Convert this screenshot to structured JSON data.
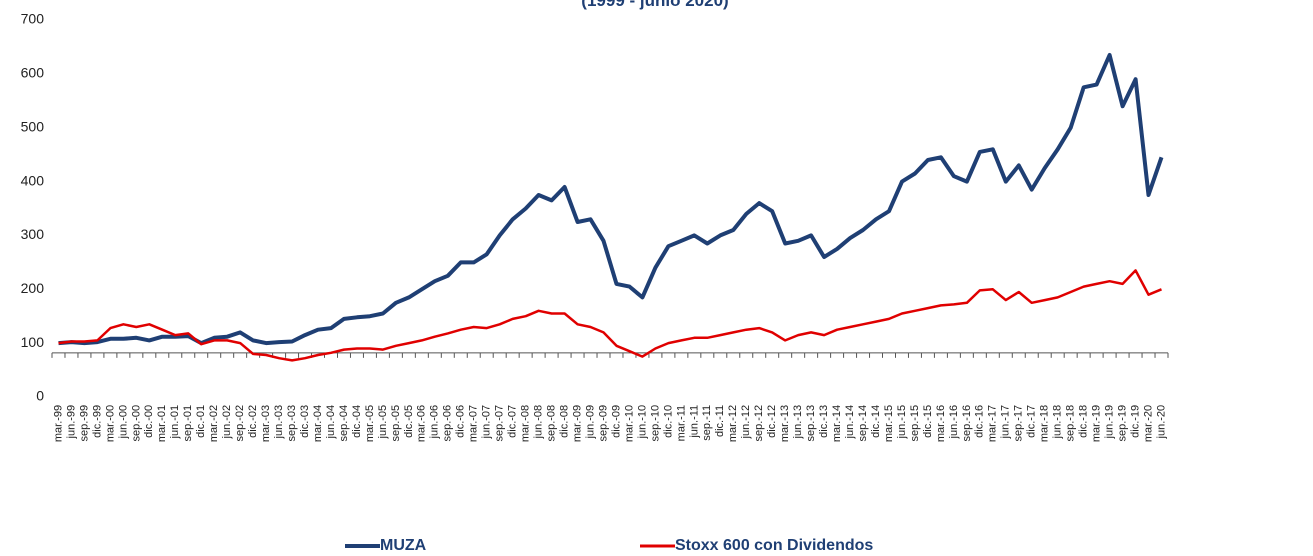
{
  "chart_data": {
    "type": "line",
    "title": "(1999 - junio 2020)",
    "categories": [
      "mar.-99",
      "jun.-99",
      "sep.-99",
      "dic.-99",
      "mar.-00",
      "jun.-00",
      "sep.-00",
      "dic.-00",
      "mar.-01",
      "jun.-01",
      "sep.-01",
      "dic.-01",
      "mar.-02",
      "jun.-02",
      "sep.-02",
      "dic.-02",
      "mar.-03",
      "jun.-03",
      "sep.-03",
      "dic.-03",
      "mar.-04",
      "jun.-04",
      "sep.-04",
      "dic.-04",
      "mar.-05",
      "jun.-05",
      "sep.-05",
      "dic.-05",
      "mar.-06",
      "jun.-06",
      "sep.-06",
      "dic.-06",
      "mar.-07",
      "jun.-07",
      "sep.-07",
      "dic.-07",
      "mar.-08",
      "jun.-08",
      "sep.-08",
      "dic.-08",
      "mar.-09",
      "jun.-09",
      "sep.-09",
      "dic.-09",
      "mar.-10",
      "jun.-10",
      "sep.-10",
      "dic.-10",
      "mar.-11",
      "jun.-11",
      "sep.-11",
      "dic.-11",
      "mar.-12",
      "jun.-12",
      "sep.-12",
      "dic.-12",
      "mar.-13",
      "jun.-13",
      "sep.-13",
      "dic.-13",
      "mar.-14",
      "jun.-14",
      "sep.-14",
      "dic.-14",
      "mar.-15",
      "jun.-15",
      "sep.-15",
      "dic.-15",
      "mar.-16",
      "jun.-16",
      "sep.-16",
      "dic.-16",
      "mar.-17",
      "jun.-17",
      "sep.-17",
      "dic.-17",
      "mar.-18",
      "jun.-18",
      "sep.-18",
      "dic.-18",
      "mar.-19",
      "jun.-19",
      "sep.-19",
      "dic.-19",
      "mar.-20",
      "jun.-20"
    ],
    "series": [
      {
        "name": "MUZA",
        "color": "#1f3f74",
        "values": [
          100,
          102,
          100,
          102,
          108,
          108,
          110,
          105,
          112,
          112,
          113,
          100,
          110,
          112,
          120,
          105,
          100,
          102,
          103,
          115,
          125,
          128,
          145,
          148,
          150,
          155,
          175,
          185,
          200,
          215,
          225,
          250,
          250,
          265,
          300,
          330,
          350,
          375,
          365,
          390,
          325,
          330,
          290,
          210,
          205,
          185,
          240,
          280,
          290,
          300,
          285,
          300,
          310,
          340,
          360,
          345,
          285,
          290,
          300,
          260,
          275,
          295,
          310,
          330,
          345,
          400,
          415,
          440,
          445,
          410,
          400,
          455,
          460,
          400,
          430,
          385,
          425,
          460,
          500,
          575,
          580,
          635,
          540,
          590,
          375,
          445
        ]
      },
      {
        "name": "Stoxx 600 con Dividendos",
        "color": "#e00000",
        "values": [
          100,
          103,
          103,
          105,
          128,
          135,
          130,
          135,
          125,
          115,
          118,
          98,
          105,
          105,
          100,
          80,
          78,
          72,
          68,
          72,
          78,
          82,
          88,
          90,
          90,
          88,
          95,
          100,
          105,
          112,
          118,
          125,
          130,
          128,
          135,
          145,
          150,
          160,
          155,
          155,
          135,
          130,
          120,
          95,
          85,
          75,
          90,
          100,
          105,
          110,
          110,
          115,
          120,
          125,
          128,
          120,
          105,
          115,
          120,
          115,
          125,
          130,
          135,
          140,
          145,
          155,
          160,
          165,
          170,
          172,
          175,
          198,
          200,
          180,
          195,
          175,
          180,
          185,
          195,
          205,
          210,
          215,
          210,
          235,
          190,
          200
        ]
      }
    ],
    "ylim": [
      0,
      700
    ],
    "yticks": [
      0,
      100,
      200,
      300,
      400,
      500,
      600,
      700
    ],
    "x_axis_crosses": 82,
    "grid": false
  }
}
